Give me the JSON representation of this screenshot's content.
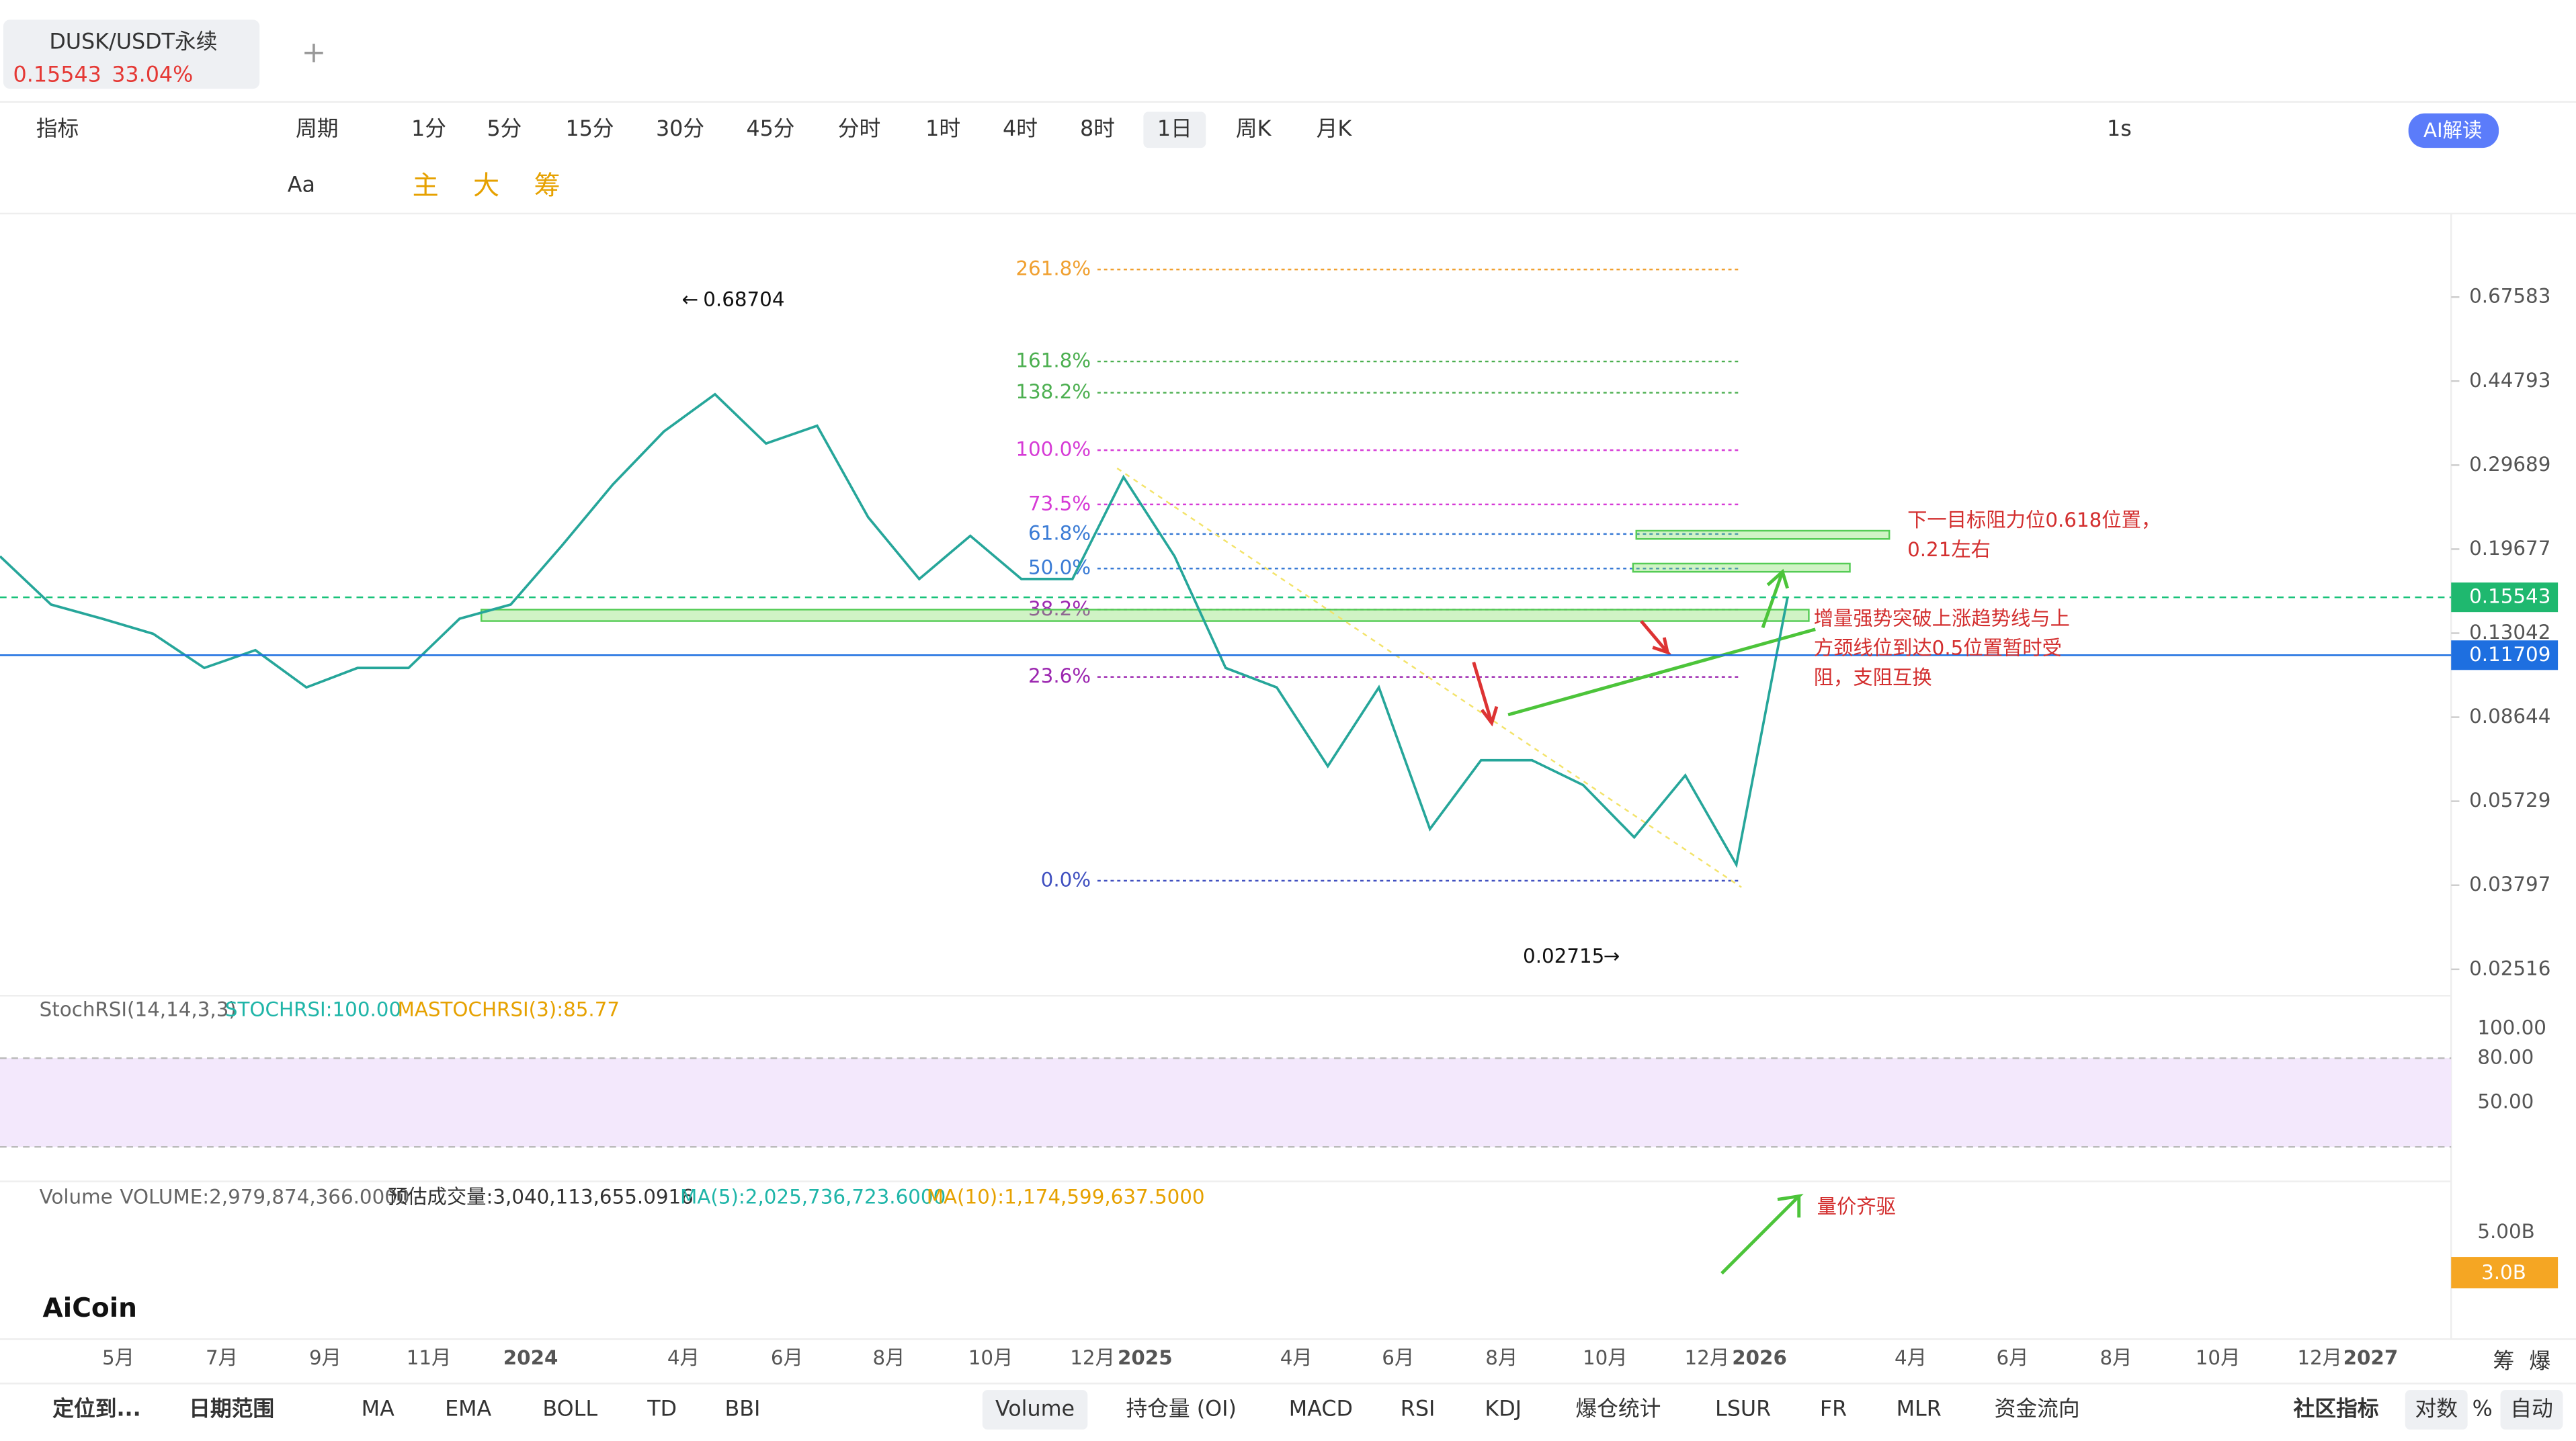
{
  "tab": {
    "symbol": "DUSK/USDT永续",
    "price": "0.15543",
    "change": "33.04%"
  },
  "toolbar": {
    "indicator": "指标",
    "period": "周期",
    "intervals": [
      "1分",
      "5分",
      "15分",
      "30分",
      "45分",
      "分时",
      "1时",
      "4时",
      "8时",
      "1日",
      "周K",
      "月K"
    ],
    "refresh": "1s",
    "ai": "AI解读"
  },
  "draw_tools": {
    "text": "Aa",
    "chips": [
      "主",
      "大",
      "筹"
    ]
  },
  "chart_data": {
    "type": "line",
    "log_scale": true,
    "color": "#26a69a",
    "ylim": [
      0.0232,
      1.017
    ],
    "yticks": [
      0.67583,
      0.44793,
      0.29689,
      0.19677,
      0.13042,
      0.08644,
      0.05729,
      0.03797,
      0.02516
    ],
    "x_labels": [
      "5月",
      "7月",
      "9月",
      "11月",
      "2024",
      "4月",
      "6月",
      "8月",
      "10月",
      "12月",
      "2025",
      "4月",
      "6月",
      "8月",
      "10月",
      "12月",
      "2026",
      "4月",
      "6月",
      "8月",
      "10月",
      "12月",
      "2027"
    ],
    "closes": [
      0.19,
      0.15,
      0.14,
      0.13,
      0.11,
      0.12,
      0.1,
      0.11,
      0.11,
      0.14,
      0.15,
      0.2,
      0.27,
      0.35,
      0.42,
      0.33,
      0.36,
      0.23,
      0.17,
      0.21,
      0.17,
      0.17,
      0.28,
      0.19,
      0.11,
      0.1,
      0.068,
      0.1,
      0.05,
      0.07,
      0.07,
      0.062,
      0.048,
      0.065,
      0.042,
      0.155
    ],
    "high": 0.68704,
    "low": 0.02715,
    "current_price": 0.15543,
    "crosshair_price": 0.11709,
    "fib_levels": [
      "261.8%",
      "161.8%",
      "138.2%",
      "100.0%",
      "73.5%",
      "61.8%",
      "50.0%",
      "38.2%",
      "23.6%",
      "0.0%"
    ],
    "annotations": [
      [
        "下一目标阻力位0.618位置，",
        "0.21左右"
      ],
      [
        "增量强势突破上涨趋势线与上",
        "方颈线位到达0.5位置暂时受",
        "阻，支阻互换"
      ],
      [
        "量价齐驱"
      ]
    ]
  },
  "stoch": {
    "name": "StochRSI(14,14,3,3)",
    "k": "STOCHRSI:100.00",
    "d": "MASTOCHRSI(3):85.77",
    "ylim": [
      0,
      100
    ],
    "band": [
      20,
      80
    ],
    "yticks": [
      {
        "value": 100,
        "label": "100.00"
      },
      {
        "value": 80,
        "label": "80.00"
      },
      {
        "value": 50,
        "label": "50.00"
      }
    ]
  },
  "volume": {
    "name": "Volume",
    "vol": "VOLUME:2,979,874,366.0000",
    "est": "预估成交量:3,040,113,655.0916",
    "ma5": "MA(5):2,025,736,723.6000",
    "ma10": "MA(10):1,174,599,637.5000",
    "tick": "5.00B",
    "current": "3.0B"
  },
  "side_labels": [
    "筹",
    "爆"
  ],
  "bottom": {
    "locate": "定位到...",
    "range": "日期范围",
    "main": [
      "MA",
      "EMA",
      "BOLL",
      "TD",
      "BBI"
    ],
    "sub": [
      "Volume",
      "持仓量 (OI)",
      "MACD",
      "RSI",
      "KDJ",
      "爆仓统计",
      "LSUR",
      "FR",
      "MLR",
      "资金流向"
    ],
    "community": "社区指标",
    "log": "对数",
    "pct": "%",
    "auto": "自动"
  },
  "logo": "AiCoin"
}
